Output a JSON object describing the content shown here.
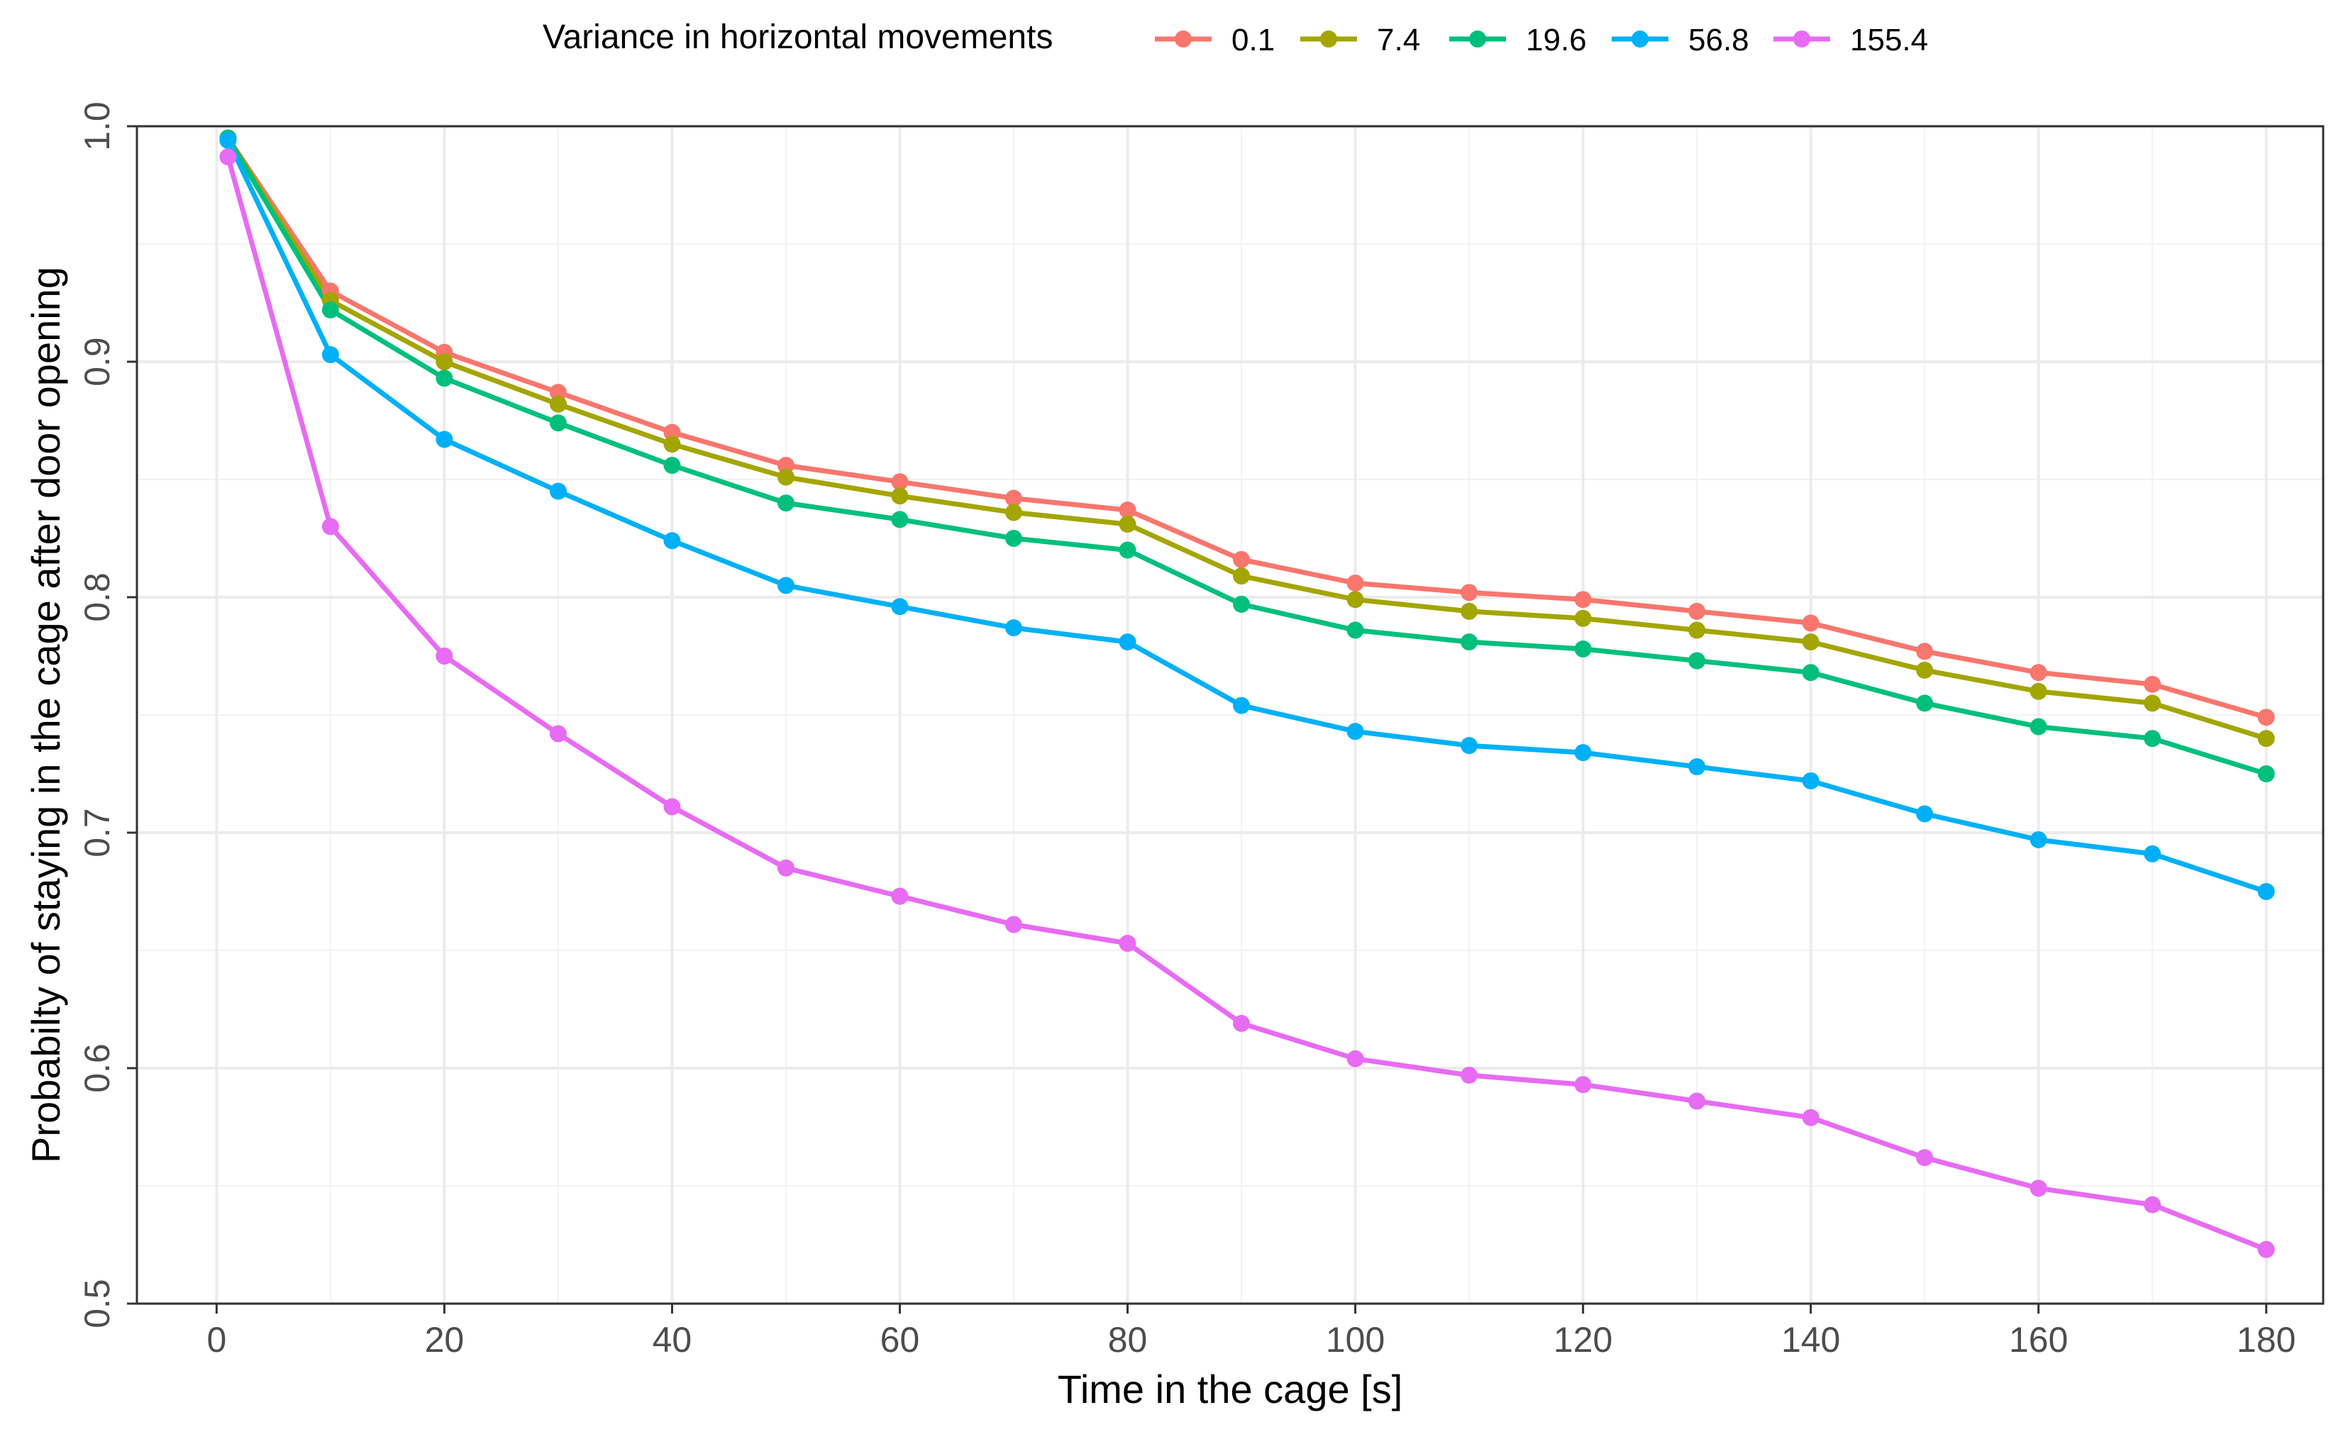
{
  "chart_data": {
    "type": "line",
    "title": "",
    "xlabel": "Time in the cage [s]",
    "ylabel": "Probabilty of staying in the cage after door opening",
    "xlim": [
      -7,
      185
    ],
    "ylim": [
      0.5,
      1.0
    ],
    "x_ticks": [
      0,
      20,
      40,
      60,
      80,
      100,
      120,
      140,
      160,
      180
    ],
    "x_tick_labels": [
      "0",
      "20",
      "40",
      "60",
      "80",
      "100",
      "120",
      "140",
      "160",
      "180"
    ],
    "y_ticks": [
      0.5,
      0.6,
      0.7,
      0.8,
      0.9,
      1.0
    ],
    "y_tick_labels": [
      "0.5",
      "0.6",
      "0.7",
      "0.8",
      "0.9",
      "1.0"
    ],
    "grid": true,
    "legend": {
      "title": "Variance in horizontal movements",
      "position": "top"
    },
    "x": [
      1,
      10,
      20,
      30,
      40,
      50,
      60,
      70,
      80,
      90,
      100,
      110,
      120,
      130,
      140,
      150,
      160,
      170,
      180
    ],
    "series": [
      {
        "name": "0.1",
        "color": "#F8766D",
        "values": [
          0.995,
          0.93,
          0.904,
          0.887,
          0.87,
          0.856,
          0.849,
          0.842,
          0.837,
          0.816,
          0.806,
          0.802,
          0.799,
          0.794,
          0.789,
          0.777,
          0.768,
          0.763,
          0.749
        ]
      },
      {
        "name": "7.4",
        "color": "#A3A500",
        "values": [
          0.995,
          0.926,
          0.9,
          0.882,
          0.865,
          0.851,
          0.843,
          0.836,
          0.831,
          0.809,
          0.799,
          0.794,
          0.791,
          0.786,
          0.781,
          0.769,
          0.76,
          0.755,
          0.74
        ]
      },
      {
        "name": "19.6",
        "color": "#00BF7D",
        "values": [
          0.995,
          0.922,
          0.893,
          0.874,
          0.856,
          0.84,
          0.833,
          0.825,
          0.82,
          0.797,
          0.786,
          0.781,
          0.778,
          0.773,
          0.768,
          0.755,
          0.745,
          0.74,
          0.725
        ]
      },
      {
        "name": "56.8",
        "color": "#00B0F6",
        "values": [
          0.994,
          0.903,
          0.867,
          0.845,
          0.824,
          0.805,
          0.796,
          0.787,
          0.781,
          0.754,
          0.743,
          0.737,
          0.734,
          0.728,
          0.722,
          0.708,
          0.697,
          0.691,
          0.675
        ]
      },
      {
        "name": "155.4",
        "color": "#E76BF3",
        "values": [
          0.987,
          0.83,
          0.775,
          0.742,
          0.711,
          0.685,
          0.673,
          0.661,
          0.653,
          0.619,
          0.604,
          0.597,
          0.593,
          0.586,
          0.579,
          0.562,
          0.549,
          0.542,
          0.523
        ]
      }
    ]
  }
}
